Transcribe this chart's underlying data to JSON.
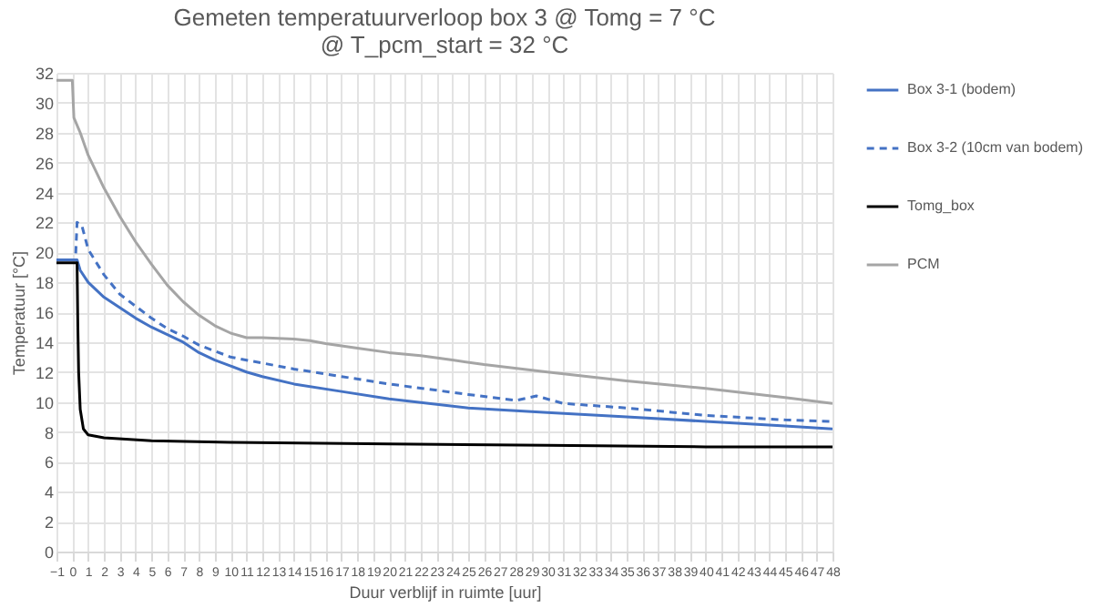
{
  "chart_data": {
    "type": "line",
    "title": "Gemeten temperatuurverloop box 3 @ Tomg = 7 °C",
    "subtitle": "@ T_pcm_start = 32 °C",
    "xlabel": "Duur verblijf in ruimte [uur]",
    "ylabel": "Temperatuur [°C]",
    "xlim": [
      -1,
      48
    ],
    "xticks": [
      -1,
      0,
      1,
      2,
      3,
      4,
      5,
      6,
      7,
      8,
      9,
      10,
      11,
      12,
      13,
      14,
      15,
      16,
      17,
      18,
      19,
      20,
      21,
      22,
      23,
      24,
      25,
      26,
      27,
      28,
      29,
      30,
      31,
      32,
      33,
      34,
      35,
      36,
      37,
      38,
      39,
      40,
      41,
      42,
      43,
      44,
      45,
      46,
      47,
      48
    ],
    "ylim": [
      0,
      32
    ],
    "yticks": [
      0,
      2,
      4,
      6,
      8,
      10,
      12,
      14,
      16,
      18,
      20,
      22,
      24,
      26,
      28,
      30,
      32
    ],
    "grid": true,
    "legend": "right",
    "marker": "none",
    "series": [
      {
        "name": "Box 3-1 (bodem)",
        "color": "#4472c4",
        "line_style": "solid",
        "x": [
          -1,
          0.3,
          0.5,
          1,
          2,
          3,
          4,
          5,
          6,
          7,
          8,
          9,
          10,
          11,
          12,
          14,
          17,
          20,
          25,
          30,
          35,
          40,
          45,
          48
        ],
        "values": [
          19.5,
          19.5,
          18.8,
          18.0,
          17.0,
          16.3,
          15.6,
          15.0,
          14.5,
          14.0,
          13.3,
          12.8,
          12.4,
          12.0,
          11.7,
          11.2,
          10.7,
          10.2,
          9.6,
          9.3,
          9.0,
          8.7,
          8.4,
          8.2
        ]
      },
      {
        "name": "Box 3-2 (10cm van bodem)",
        "color": "#4472c4",
        "line_style": "dashed",
        "x": [
          -1,
          0.2,
          0.3,
          0.6,
          1,
          2,
          3,
          4,
          5,
          6,
          7,
          8,
          9,
          10,
          12,
          14,
          17,
          20,
          25,
          28,
          29.3,
          31,
          35,
          40,
          45,
          48
        ],
        "values": [
          19.5,
          19.5,
          22.0,
          21.8,
          20.2,
          18.5,
          17.2,
          16.4,
          15.6,
          14.9,
          14.4,
          13.8,
          13.4,
          13.0,
          12.6,
          12.2,
          11.7,
          11.2,
          10.5,
          10.1,
          10.4,
          9.9,
          9.6,
          9.1,
          8.8,
          8.7
        ]
      },
      {
        "name": "Tomg_box",
        "color": "#000000",
        "line_style": "solid",
        "x": [
          -1,
          0.3,
          0.35,
          0.4,
          0.5,
          0.7,
          1,
          2,
          5,
          10,
          20,
          30,
          40,
          48
        ],
        "values": [
          19.3,
          19.3,
          15.0,
          12.0,
          9.5,
          8.2,
          7.8,
          7.6,
          7.4,
          7.3,
          7.2,
          7.1,
          7.0,
          7.0
        ]
      },
      {
        "name": "PCM",
        "color": "#a5a5a5",
        "line_style": "solid",
        "x": [
          -1,
          0,
          0.1,
          0.5,
          1,
          2,
          3,
          4,
          5,
          6,
          7,
          8,
          9,
          10,
          11,
          12,
          14,
          15,
          16,
          18,
          20,
          22,
          24,
          26,
          30,
          35,
          40,
          45,
          48
        ],
        "values": [
          31.5,
          31.5,
          29.0,
          28.0,
          26.5,
          24.3,
          22.4,
          20.7,
          19.2,
          17.8,
          16.7,
          15.8,
          15.1,
          14.6,
          14.3,
          14.3,
          14.2,
          14.1,
          13.9,
          13.6,
          13.3,
          13.1,
          12.8,
          12.5,
          12.0,
          11.4,
          10.9,
          10.3,
          9.9
        ]
      }
    ]
  }
}
